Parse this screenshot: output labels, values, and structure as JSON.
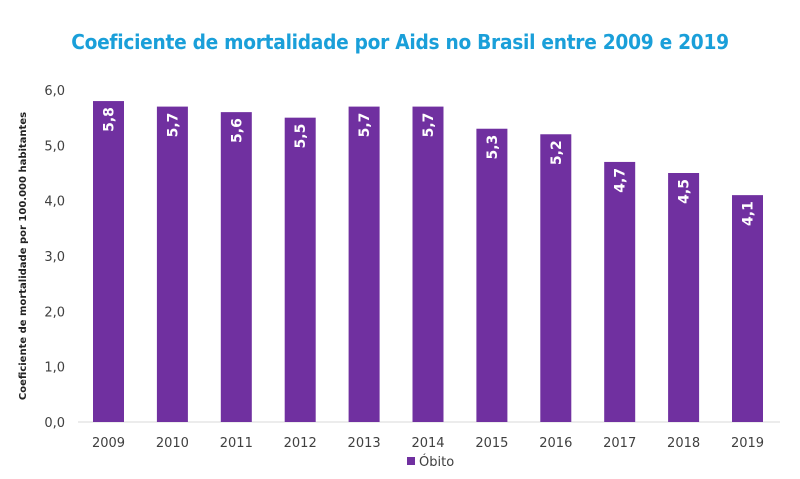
{
  "chart_data": {
    "type": "bar",
    "title": "Coeficiente de mortalidade por Aids no Brasil entre 2009 e 2019",
    "xlabel": "",
    "ylabel": "Coeficiente de mortalidade por 100.000 habitantes",
    "categories": [
      "2009",
      "2010",
      "2011",
      "2012",
      "2013",
      "2014",
      "2015",
      "2016",
      "2017",
      "2018",
      "2019"
    ],
    "series": [
      {
        "name": "Óbito",
        "values": [
          5.8,
          5.7,
          5.6,
          5.5,
          5.7,
          5.7,
          5.3,
          5.2,
          4.7,
          4.5,
          4.1
        ],
        "labels": [
          "5,8",
          "5,7",
          "5,6",
          "5,5",
          "5,7",
          "5,7",
          "5,3",
          "5,2",
          "4,7",
          "4,5",
          "4,1"
        ],
        "color": "#7030a0"
      }
    ],
    "ylim": [
      0,
      6
    ],
    "yticks": [
      0,
      1,
      2,
      3,
      4,
      5,
      6
    ],
    "ytick_labels": [
      "0,0",
      "1,0",
      "2,0",
      "3,0",
      "4,0",
      "5,0",
      "6,0"
    ],
    "grid": false,
    "legend": {
      "position": "bottom-center",
      "entries": [
        "Óbito"
      ]
    },
    "data_labels": "inside-end-rotated"
  },
  "colors": {
    "title": "#1a9fd9",
    "bar": "#7030a0",
    "axis_line": "#d9d9d9"
  }
}
